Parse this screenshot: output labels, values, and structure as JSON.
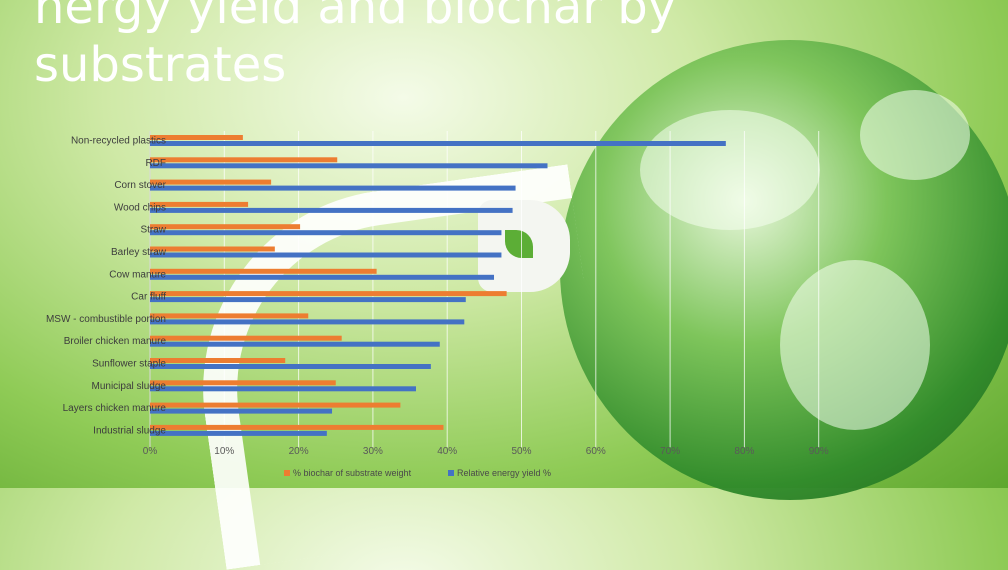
{
  "slide": {
    "title_line1": "nergy yield and biochar by",
    "title_line2": "substrates"
  },
  "chart_data": {
    "type": "bar",
    "orientation": "horizontal",
    "categories": [
      "Non-recycled plastics",
      "RDF",
      "Corn stover",
      "Wood chips",
      "Straw",
      "Barley straw",
      "Cow manure",
      "Car fluff",
      "MSW - combustible portion",
      "Broiler chicken manure",
      "Sunflower staple",
      "Municipal sludge",
      "Layers chicken manure",
      "Industrial sludge"
    ],
    "series": [
      {
        "name": "% biochar of substrate weight",
        "color": "#ed7d31",
        "values": [
          12.5,
          25.2,
          16.3,
          13.2,
          20.2,
          16.8,
          30.5,
          48.0,
          21.3,
          25.8,
          18.2,
          25.0,
          33.7,
          39.5
        ]
      },
      {
        "name": "Relative energy yield %",
        "color": "#4472c4",
        "values": [
          77.5,
          53.5,
          49.2,
          48.8,
          47.3,
          47.3,
          46.3,
          42.5,
          42.3,
          39.0,
          37.8,
          35.8,
          24.5,
          23.8
        ]
      }
    ],
    "xlim": [
      0,
      90
    ],
    "xticks": [
      "0%",
      "10%",
      "20%",
      "30%",
      "40%",
      "50%",
      "60%",
      "70%",
      "80%",
      "90%"
    ],
    "grid": true,
    "legend": "bottom"
  }
}
